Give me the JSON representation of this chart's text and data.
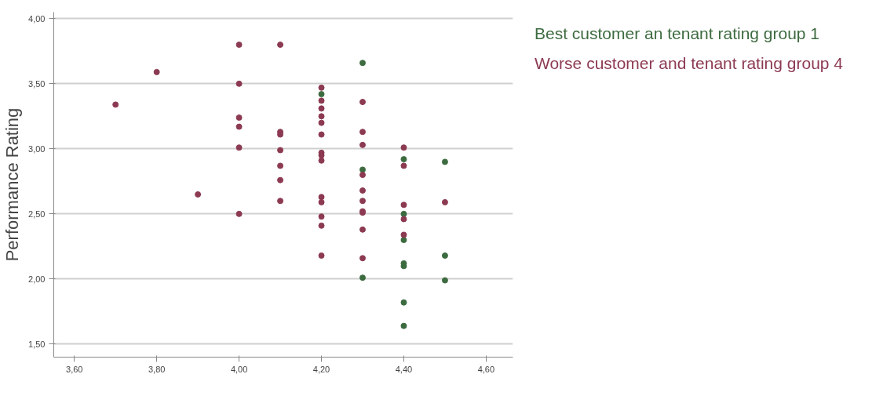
{
  "chart_data": {
    "type": "scatter",
    "ylabel": "Performance Rating",
    "xlim": [
      3.55,
      4.665
    ],
    "ylim": [
      1.4,
      4.05
    ],
    "xticks": [
      {
        "value": 3.6,
        "label": "3,60"
      },
      {
        "value": 3.8,
        "label": "3,80"
      },
      {
        "value": 4.0,
        "label": "4,00"
      },
      {
        "value": 4.2,
        "label": "4,20"
      },
      {
        "value": 4.4,
        "label": "4,40"
      },
      {
        "value": 4.6,
        "label": "4,60"
      }
    ],
    "yticks": [
      {
        "value": 1.5,
        "label": "1,50"
      },
      {
        "value": 2.0,
        "label": "2,00"
      },
      {
        "value": 2.5,
        "label": "2,50"
      },
      {
        "value": 3.0,
        "label": "3,00"
      },
      {
        "value": 3.5,
        "label": "3,50"
      },
      {
        "value": 4.0,
        "label": "4,00"
      }
    ],
    "grid": "y",
    "legend": "top right",
    "marker": "circle",
    "series": [
      {
        "name": "Best customer an tenant rating group 1",
        "color": "#3d6b40",
        "x": [
          4.2,
          4.3,
          4.3,
          4.3,
          4.4,
          4.4,
          4.4,
          4.4,
          4.4,
          4.4,
          4.4,
          4.5,
          4.5,
          4.5
        ],
        "values": [
          3.42,
          3.66,
          2.84,
          2.01,
          2.92,
          2.5,
          2.3,
          2.12,
          2.1,
          1.82,
          1.64,
          2.9,
          2.18,
          1.99
        ]
      },
      {
        "name": "Worse customer and tenant rating group 4",
        "color": "#8c3a52",
        "x": [
          3.7,
          3.8,
          3.9,
          4.0,
          4.0,
          4.0,
          4.0,
          4.0,
          4.0,
          4.1,
          4.1,
          4.1,
          4.1,
          4.1,
          4.1,
          4.1,
          4.2,
          4.2,
          4.2,
          4.2,
          4.2,
          4.2,
          4.2,
          4.2,
          4.2,
          4.2,
          4.2,
          4.2,
          4.2,
          4.2,
          4.3,
          4.3,
          4.3,
          4.3,
          4.3,
          4.3,
          4.3,
          4.3,
          4.3,
          4.3,
          4.4,
          4.4,
          4.4,
          4.4,
          4.4,
          4.5
        ],
        "values": [
          3.34,
          3.59,
          2.65,
          3.8,
          3.5,
          3.24,
          3.17,
          3.01,
          2.5,
          3.8,
          3.13,
          3.11,
          2.99,
          2.87,
          2.76,
          2.6,
          3.47,
          3.37,
          3.31,
          3.25,
          3.2,
          3.11,
          2.97,
          2.95,
          2.91,
          2.63,
          2.59,
          2.48,
          2.41,
          2.18,
          3.36,
          3.13,
          3.03,
          2.8,
          2.68,
          2.6,
          2.52,
          2.51,
          2.38,
          2.16,
          3.01,
          2.87,
          2.57,
          2.46,
          2.34,
          2.59
        ]
      }
    ]
  }
}
